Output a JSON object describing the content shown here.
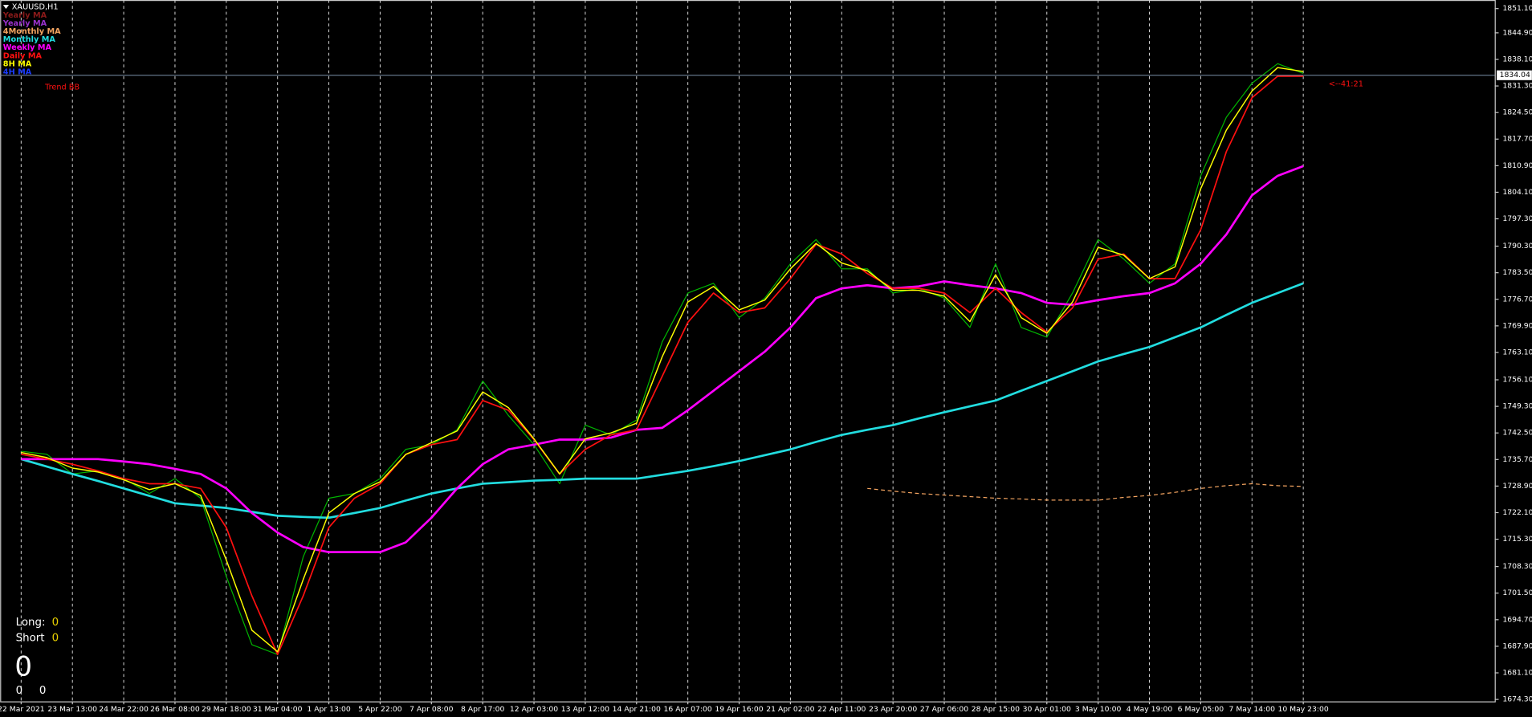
{
  "chart_data": {
    "type": "line",
    "title": "XAUUSD,H1",
    "categories": [
      "22 Mar 2021",
      null,
      "23 Mar 13:00",
      null,
      "24 Mar 22:00",
      null,
      "26 Mar 08:00",
      null,
      "29 Mar 18:00",
      null,
      "31 Mar 04:00",
      null,
      "1 Apr 13:00",
      null,
      "5 Apr 22:00",
      null,
      "7 Apr 08:00",
      null,
      "8 Apr 17:00",
      null,
      "12 Apr 03:00",
      null,
      "13 Apr 12:00",
      null,
      "14 Apr 21:00",
      null,
      "16 Apr 07:00",
      null,
      "19 Apr 16:00",
      null,
      "21 Apr 02:00",
      null,
      "22 Apr 11:00",
      null,
      "23 Apr 20:00",
      null,
      "27 Apr 06:00",
      null,
      "28 Apr 15:00",
      null,
      "30 Apr 01:00",
      null,
      "3 May 10:00",
      null,
      "4 May 19:00",
      null,
      "6 May 05:00",
      null,
      "7 May 14:00",
      null,
      "10 May 23:00",
      null
    ],
    "ylim": [
      1673.8,
      1853.3
    ],
    "yticks": [
      {
        "value": 1851.1,
        "label": "1851.10"
      },
      {
        "value": 1844.9,
        "label": "1844.90"
      },
      {
        "value": 1838.1,
        "label": "1838.10"
      },
      {
        "value": 1831.3,
        "label": "1831.30"
      },
      {
        "value": 1824.5,
        "label": "1824.50"
      },
      {
        "value": 1817.7,
        "label": "1817.70"
      },
      {
        "value": 1810.9,
        "label": "1810.90"
      },
      {
        "value": 1804.1,
        "label": "1804.10"
      },
      {
        "value": 1797.3,
        "label": "1797.30"
      },
      {
        "value": 1790.3,
        "label": "1790.30"
      },
      {
        "value": 1783.5,
        "label": "1783.50"
      },
      {
        "value": 1776.7,
        "label": "1776.70"
      },
      {
        "value": 1769.9,
        "label": "1769.90"
      },
      {
        "value": 1763.1,
        "label": "1763.10"
      },
      {
        "value": 1756.1,
        "label": "1756.10"
      },
      {
        "value": 1749.3,
        "label": "1749.30"
      },
      {
        "value": 1742.5,
        "label": "1742.50"
      },
      {
        "value": 1735.7,
        "label": "1735.70"
      },
      {
        "value": 1728.9,
        "label": "1728.90"
      },
      {
        "value": 1722.1,
        "label": "1722.10"
      },
      {
        "value": 1715.3,
        "label": "1715.30"
      },
      {
        "value": 1708.3,
        "label": "1708.30"
      },
      {
        "value": 1701.5,
        "label": "1701.50"
      },
      {
        "value": 1694.7,
        "label": "1694.70"
      },
      {
        "value": 1687.9,
        "label": "1687.90"
      },
      {
        "value": 1681.1,
        "label": "1681.10"
      },
      {
        "value": 1674.3,
        "label": "1674.30"
      }
    ],
    "grid": true,
    "current_price": 1834.04,
    "countdown": "<--41:21",
    "indicator_label": "Trend BB",
    "price": {
      "color": "#00b400",
      "values": [
        1737.8,
        1737.05,
        1732,
        1732.8,
        1730.8,
        1727,
        1730.8,
        1725.8,
        1705.8,
        1688.3,
        1685.8,
        1710.8,
        1725.8,
        1727,
        1730.8,
        1738.3,
        1739.5,
        1743.3,
        1755.8,
        1747,
        1739.5,
        1729.5,
        1744.5,
        1742,
        1745.8,
        1765.8,
        1778.3,
        1780.8,
        1772,
        1777,
        1785.8,
        1792,
        1784.5,
        1784.5,
        1778.3,
        1779.5,
        1777,
        1769.5,
        1785.8,
        1769.5,
        1767,
        1778.3,
        1792,
        1787,
        1780.8,
        1785.8,
        1808.3,
        1823.3,
        1832,
        1837,
        1834.5,
        null
      ]
    },
    "series": [
      {
        "name": "Yearly MA",
        "color": "#8b1a1a"
      },
      {
        "name": "Yearly MA",
        "color": "#9932cc"
      },
      {
        "name": "4Monthly MA",
        "color": "#f4a460",
        "dashed": true,
        "width": 1,
        "values": [
          null,
          null,
          null,
          null,
          null,
          null,
          null,
          null,
          null,
          null,
          null,
          null,
          null,
          null,
          null,
          null,
          null,
          null,
          null,
          null,
          null,
          null,
          null,
          null,
          null,
          null,
          null,
          null,
          null,
          null,
          null,
          null,
          null,
          1728.3,
          1727.6,
          1727,
          1726.6,
          1726.2,
          1725.8,
          1725.6,
          1725.3,
          1725.3,
          1725.3,
          1726,
          1726.5,
          1727.3,
          1728.3,
          1729,
          1729.5,
          1729,
          1728.8,
          null
        ]
      },
      {
        "name": "Monthly MA",
        "color": "#22dde0",
        "width": 2.2,
        "values": [
          1735.8,
          1733.9,
          1732,
          1730.2,
          1728.3,
          1726.4,
          1724.5,
          1723.9,
          1723.3,
          1722.3,
          1721.3,
          1721,
          1720.8,
          1722,
          1723.3,
          1725.2,
          1727,
          1728.3,
          1729.5,
          1729.9,
          1730.3,
          1730.5,
          1730.8,
          1730.8,
          1730.8,
          1731.8,
          1732.8,
          1734,
          1735.3,
          1736.8,
          1738.3,
          1740.2,
          1742,
          1743.3,
          1744.5,
          1746.2,
          1747.8,
          1749.3,
          1750.8,
          1753.3,
          1755.8,
          1758.3,
          1760.8,
          1762.7,
          1764.5,
          1767,
          1769.5,
          1772.7,
          1775.8,
          1778.3,
          1780.8,
          null
        ]
      },
      {
        "name": "Weekly MA",
        "color": "#ff00ff",
        "width": 2.2,
        "values": [
          1735.8,
          1735.8,
          1735.8,
          1735.8,
          1735.2,
          1734.5,
          1733.3,
          1732,
          1728.3,
          1722,
          1717,
          1713.3,
          1712,
          1712,
          1712,
          1714.5,
          1720.8,
          1728.3,
          1734.5,
          1738.3,
          1739.5,
          1740.8,
          1740.8,
          1741.3,
          1743.3,
          1743.8,
          1748.3,
          1753.3,
          1758.3,
          1763.3,
          1769.5,
          1777,
          1779.5,
          1780.3,
          1779.5,
          1780,
          1781.3,
          1780.3,
          1779.5,
          1778.3,
          1775.8,
          1775.3,
          1776.5,
          1777.5,
          1778.3,
          1780.8,
          1785.8,
          1793.3,
          1803.3,
          1808.3,
          1810.8,
          null
        ]
      },
      {
        "name": "Daily MA",
        "color": "#ff1010",
        "width": 1.4,
        "values": [
          1737.05,
          1735.8,
          1734.5,
          1732.8,
          1730.8,
          1729.5,
          1729.5,
          1728.3,
          1718.3,
          1700.8,
          1685.8,
          1700.8,
          1718.3,
          1725.8,
          1729.5,
          1737,
          1739.5,
          1740.8,
          1750.8,
          1748.3,
          1740.8,
          1732,
          1738.3,
          1742,
          1743.3,
          1757,
          1770.8,
          1778.3,
          1773.3,
          1774.5,
          1782,
          1790.8,
          1788.3,
          1783.3,
          1779.5,
          1779.5,
          1778.3,
          1773.3,
          1779.5,
          1773.3,
          1768.3,
          1774.5,
          1787,
          1788.3,
          1782,
          1782,
          1794.5,
          1814.5,
          1828.3,
          1833.8,
          1833.8,
          null
        ]
      },
      {
        "name": "8H MA",
        "color": "#ffff00",
        "width": 1.2,
        "values": [
          1737.5,
          1736.2,
          1733.5,
          1732.5,
          1730.5,
          1728,
          1729.5,
          1726.5,
          1710,
          1692,
          1686.5,
          1705,
          1722,
          1727,
          1730,
          1737,
          1740,
          1743,
          1753,
          1749,
          1741,
          1732,
          1741,
          1742.5,
          1745,
          1762,
          1776,
          1780,
          1774,
          1776.5,
          1784.5,
          1791,
          1786,
          1784,
          1779,
          1779,
          1777.5,
          1771,
          1783,
          1772,
          1768,
          1776,
          1790,
          1788,
          1782,
          1785,
          1805,
          1820,
          1830,
          1836,
          1835,
          null
        ]
      },
      {
        "name": "4H MA",
        "color": "#1a3cff"
      }
    ],
    "position_panel": {
      "long_label": "Long:",
      "long": 0,
      "short_label": "Short",
      "short": 0,
      "total": 0,
      "left": 0,
      "right": 0
    }
  }
}
